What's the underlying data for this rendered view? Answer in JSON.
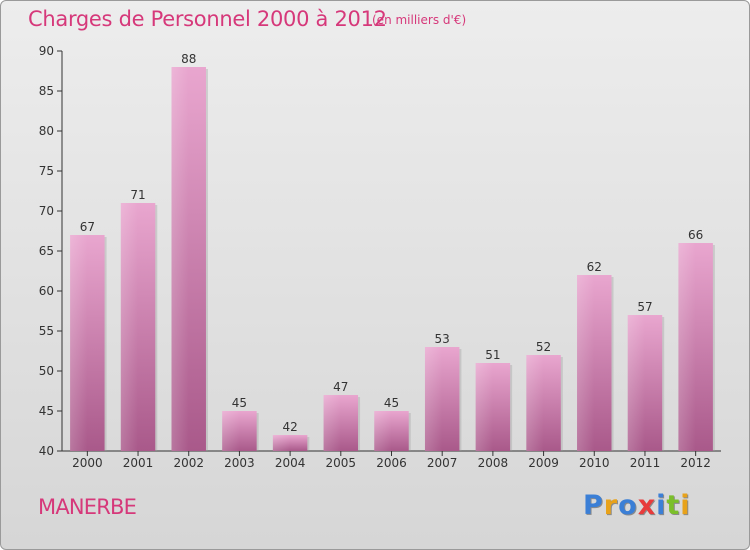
{
  "header": {
    "title": "Charges de Personnel 2000 à 2012",
    "subtitle": "(en milliers d'€)"
  },
  "footer": {
    "commune": "MANERBE",
    "logo": {
      "text": "Proxiti",
      "letters": [
        {
          "ch": "P",
          "color": "#3b7fd6"
        },
        {
          "ch": "r",
          "color": "#e8a21a"
        },
        {
          "ch": "o",
          "color": "#3b7fd6"
        },
        {
          "ch": "x",
          "color": "#e83b3b"
        },
        {
          "ch": "i",
          "color": "#3b7fd6"
        },
        {
          "ch": "t",
          "color": "#7bbf2a"
        },
        {
          "ch": "i",
          "color": "#e8a21a"
        }
      ]
    }
  },
  "colors": {
    "accent": "#d6387a",
    "bar_top": "#e9a6cf",
    "bar_bottom": "#a9598a",
    "axis": "#333333"
  },
  "chart_data": {
    "type": "bar",
    "title": "Charges de Personnel 2000 à 2012",
    "subtitle": "(en milliers d'€)",
    "categories": [
      "2000",
      "2001",
      "2002",
      "2003",
      "2004",
      "2005",
      "2006",
      "2007",
      "2008",
      "2009",
      "2010",
      "2011",
      "2012"
    ],
    "values": [
      67,
      71,
      88,
      45,
      42,
      47,
      45,
      53,
      51,
      52,
      62,
      57,
      66
    ],
    "ylim": [
      40,
      90
    ],
    "yticks": [
      40,
      45,
      50,
      55,
      60,
      65,
      70,
      75,
      80,
      85,
      90
    ],
    "xlabel": "",
    "ylabel": "",
    "grid": false,
    "data_labels": true
  }
}
